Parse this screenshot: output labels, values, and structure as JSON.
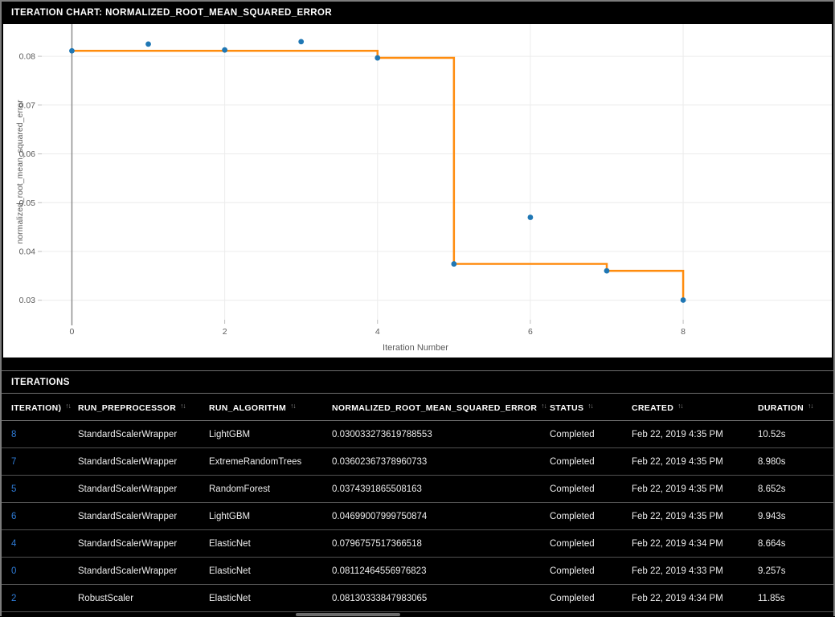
{
  "chart_panel": {
    "title": "ITERATION CHART: NORMALIZED_ROOT_MEAN_SQUARED_ERROR",
    "chart_data": {
      "type": "scatter",
      "title": "",
      "xlabel": "Iteration Number",
      "ylabel": "normalized_root_mean_squared_error",
      "x_ticks": [
        0,
        2,
        4,
        6,
        8
      ],
      "y_ticks": [
        0.03,
        0.04,
        0.05,
        0.06,
        0.07,
        0.08
      ],
      "x_domain": [
        -0.394,
        9.945
      ],
      "y_domain": [
        0.026,
        0.0866
      ],
      "grid": true,
      "series": [
        {
          "name": "metric-scatter",
          "type": "scatter",
          "color": "#1f77b4",
          "points": [
            [
              0,
              0.08112464556976823
            ],
            [
              1,
              0.0825
            ],
            [
              2,
              0.08130333847983065
            ],
            [
              3,
              0.083
            ],
            [
              4,
              0.0796757517366518
            ],
            [
              5,
              0.0374391865508163
            ],
            [
              6,
              0.04699007999750874
            ],
            [
              7,
              0.03602367378960733
            ],
            [
              8,
              0.030033273619788553
            ]
          ]
        },
        {
          "name": "best-so-far-step-line",
          "type": "step-min",
          "color": "#ff8c0e"
        }
      ],
      "colors": {
        "grid_line": "#ececec",
        "zero_axis_line": "#8c8c8c",
        "tick_mark": "#bdbdbd",
        "tick_label": "#5a5a5a",
        "axis_title": "#5a5a5a",
        "plot_background": "#ffffff"
      }
    }
  },
  "iterations_panel": {
    "title": "ITERATIONS",
    "sort_icon": "↑↓",
    "columns": [
      {
        "key": "iteration",
        "label": "ITERATION)"
      },
      {
        "key": "preprocessor",
        "label": "RUN_PREPROCESSOR"
      },
      {
        "key": "algorithm",
        "label": "RUN_ALGORITHM"
      },
      {
        "key": "metric",
        "label": "NORMALIZED_ROOT_MEAN_SQUARED_ERROR"
      },
      {
        "key": "status",
        "label": "STATUS"
      },
      {
        "key": "created",
        "label": "CREATED"
      },
      {
        "key": "duration",
        "label": "DURATION"
      }
    ],
    "rows": [
      {
        "iteration": "8",
        "preprocessor": "StandardScalerWrapper",
        "algorithm": "LightGBM",
        "metric": "0.030033273619788553",
        "status": "Completed",
        "created": "Feb 22, 2019 4:35 PM",
        "duration": "10.52s"
      },
      {
        "iteration": "7",
        "preprocessor": "StandardScalerWrapper",
        "algorithm": "ExtremeRandomTrees",
        "metric": "0.03602367378960733",
        "status": "Completed",
        "created": "Feb 22, 2019 4:35 PM",
        "duration": "8.980s"
      },
      {
        "iteration": "5",
        "preprocessor": "StandardScalerWrapper",
        "algorithm": "RandomForest",
        "metric": "0.0374391865508163",
        "status": "Completed",
        "created": "Feb 22, 2019 4:35 PM",
        "duration": "8.652s"
      },
      {
        "iteration": "6",
        "preprocessor": "StandardScalerWrapper",
        "algorithm": "LightGBM",
        "metric": "0.04699007999750874",
        "status": "Completed",
        "created": "Feb 22, 2019 4:35 PM",
        "duration": "9.943s"
      },
      {
        "iteration": "4",
        "preprocessor": "StandardScalerWrapper",
        "algorithm": "ElasticNet",
        "metric": "0.0796757517366518",
        "status": "Completed",
        "created": "Feb 22, 2019 4:34 PM",
        "duration": "8.664s"
      },
      {
        "iteration": "0",
        "preprocessor": "StandardScalerWrapper",
        "algorithm": "ElasticNet",
        "metric": "0.08112464556976823",
        "status": "Completed",
        "created": "Feb 22, 2019 4:33 PM",
        "duration": "9.257s"
      },
      {
        "iteration": "2",
        "preprocessor": "RobustScaler",
        "algorithm": "ElasticNet",
        "metric": "0.08130333847983065",
        "status": "Completed",
        "created": "Feb 22, 2019 4:34 PM",
        "duration": "11.85s"
      }
    ]
  }
}
